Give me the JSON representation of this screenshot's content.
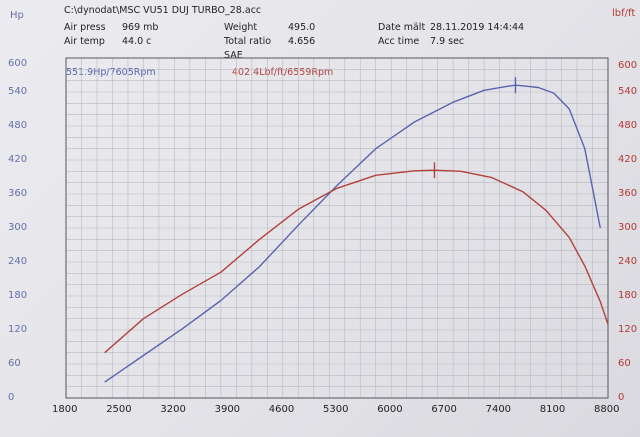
{
  "header": {
    "file": "C:\\dynodat\\MSC VU51 DUJ TURBO_28.acc",
    "air_press_label": "Air press",
    "air_press_value": "969 mb",
    "air_temp_label": "Air temp",
    "air_temp_value": "44.0 c",
    "weight_label": "Weight",
    "weight_value": "495.0",
    "ratio_label": "Total ratio",
    "ratio_value": "4.656",
    "standard": "SAE",
    "date_label": "Date mält",
    "date_value": "28.11.2019 14:4:44",
    "acc_label": "Acc time",
    "acc_value": "7.9 sec"
  },
  "chart_data": {
    "type": "line",
    "xlabel": "",
    "x_ticks": [
      "1800",
      "2500",
      "3200",
      "3900",
      "4600",
      "5300",
      "6000",
      "6700",
      "7400",
      "8100",
      "8800"
    ],
    "xlim": [
      1800,
      8800
    ],
    "left_axis": {
      "label": "Hp",
      "ticks": [
        "0",
        "60",
        "120",
        "180",
        "240",
        "300",
        "360",
        "420",
        "480",
        "540",
        "600"
      ],
      "ylim": [
        0,
        600
      ]
    },
    "right_axis": {
      "label": "lbf/ft",
      "ticks": [
        "0",
        "60",
        "120",
        "180",
        "240",
        "300",
        "360",
        "420",
        "480",
        "540",
        "600"
      ],
      "ylim": [
        0,
        600
      ]
    },
    "grid": true,
    "series": [
      {
        "name": "551.9Hp/7605Rpm",
        "axis": "left",
        "color": "#5a63b0",
        "x": [
          2300,
          2800,
          3300,
          3800,
          4300,
          4800,
          5300,
          5800,
          6300,
          6800,
          7200,
          7500,
          7605,
          7700,
          7900,
          8100,
          8300,
          8500,
          8700
        ],
        "y": [
          28,
          75,
          122,
          172,
          232,
          305,
          375,
          440,
          487,
          522,
          543,
          550,
          552,
          551,
          548,
          538,
          510,
          440,
          300
        ]
      },
      {
        "name": "402.4Lbf/ft/6559Rpm",
        "axis": "right",
        "color": "#b3413c",
        "x": [
          2300,
          2800,
          3300,
          3800,
          4300,
          4800,
          5300,
          5800,
          6300,
          6559,
          6900,
          7300,
          7700,
          8000,
          8300,
          8500,
          8700,
          8800
        ],
        "y": [
          80,
          140,
          183,
          222,
          280,
          333,
          370,
          393,
          401,
          402,
          400,
          389,
          364,
          331,
          283,
          233,
          170,
          130
        ]
      }
    ],
    "markers": [
      {
        "series": 0,
        "x": 7605,
        "y": 552
      },
      {
        "series": 1,
        "x": 6559,
        "y": 402
      }
    ]
  }
}
